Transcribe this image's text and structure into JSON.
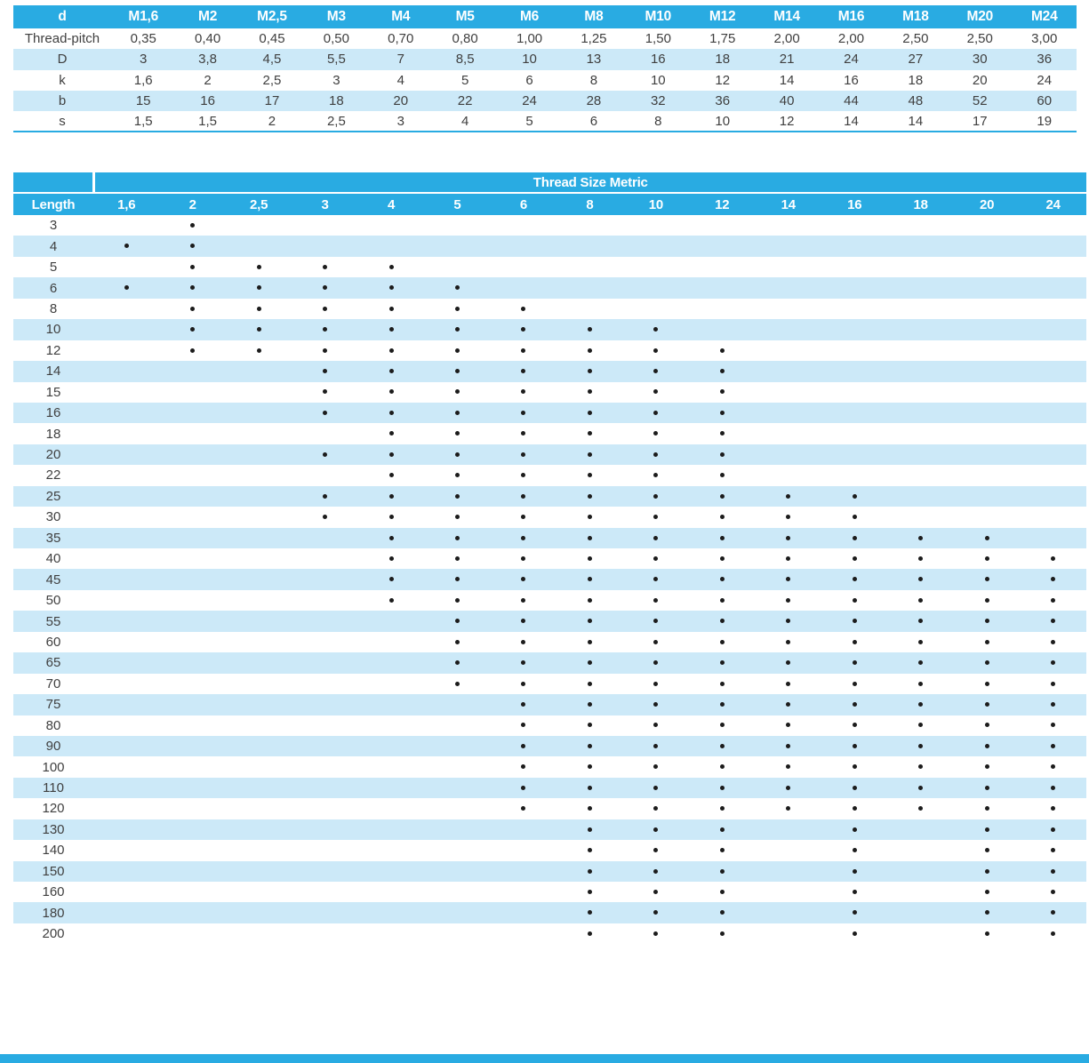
{
  "colors": {
    "header_blue": "#29abe2",
    "stripe_blue": "#cce9f8",
    "text": "#3f3f3f",
    "dot": "#1c1c1c",
    "header_text": "#ffffff"
  },
  "dimensions_table": {
    "columns": [
      "d",
      "M1,6",
      "M2",
      "M2,5",
      "M3",
      "M4",
      "M5",
      "M6",
      "M8",
      "M10",
      "M12",
      "M14",
      "M16",
      "M18",
      "M20",
      "M24"
    ],
    "rows": [
      {
        "label": "Thread-pitch",
        "values": [
          "0,35",
          "0,40",
          "0,45",
          "0,50",
          "0,70",
          "0,80",
          "1,00",
          "1,25",
          "1,50",
          "1,75",
          "2,00",
          "2,00",
          "2,50",
          "2,50",
          "3,00"
        ]
      },
      {
        "label": "D",
        "values": [
          "3",
          "3,8",
          "4,5",
          "5,5",
          "7",
          "8,5",
          "10",
          "13",
          "16",
          "18",
          "21",
          "24",
          "27",
          "30",
          "36"
        ]
      },
      {
        "label": "k",
        "values": [
          "1,6",
          "2",
          "2,5",
          "3",
          "4",
          "5",
          "6",
          "8",
          "10",
          "12",
          "14",
          "16",
          "18",
          "20",
          "24"
        ]
      },
      {
        "label": "b",
        "values": [
          "15",
          "16",
          "17",
          "18",
          "20",
          "22",
          "24",
          "28",
          "32",
          "36",
          "40",
          "44",
          "48",
          "52",
          "60"
        ]
      },
      {
        "label": "s",
        "values": [
          "1,5",
          "1,5",
          "2",
          "2,5",
          "3",
          "4",
          "5",
          "6",
          "8",
          "10",
          "12",
          "14",
          "14",
          "17",
          "19"
        ]
      }
    ]
  },
  "availability_table": {
    "title": "Thread Size Metric",
    "length_label": "Length",
    "sizes": [
      "1,6",
      "2",
      "2,5",
      "3",
      "4",
      "5",
      "6",
      "8",
      "10",
      "12",
      "14",
      "16",
      "18",
      "20",
      "24"
    ],
    "rows": [
      {
        "length": "3",
        "available": [
          "2"
        ]
      },
      {
        "length": "4",
        "available": [
          "1,6",
          "2"
        ]
      },
      {
        "length": "5",
        "available": [
          "2",
          "2,5",
          "3",
          "4"
        ]
      },
      {
        "length": "6",
        "available": [
          "1,6",
          "2",
          "2,5",
          "3",
          "4",
          "5"
        ]
      },
      {
        "length": "8",
        "available": [
          "2",
          "2,5",
          "3",
          "4",
          "5",
          "6"
        ]
      },
      {
        "length": "10",
        "available": [
          "2",
          "2,5",
          "3",
          "4",
          "5",
          "6",
          "8",
          "10"
        ]
      },
      {
        "length": "12",
        "available": [
          "2",
          "2,5",
          "3",
          "4",
          "5",
          "6",
          "8",
          "10",
          "12"
        ]
      },
      {
        "length": "14",
        "available": [
          "3",
          "4",
          "5",
          "6",
          "8",
          "10",
          "12"
        ]
      },
      {
        "length": "15",
        "available": [
          "3",
          "4",
          "5",
          "6",
          "8",
          "10",
          "12"
        ]
      },
      {
        "length": "16",
        "available": [
          "3",
          "4",
          "5",
          "6",
          "8",
          "10",
          "12"
        ]
      },
      {
        "length": "18",
        "available": [
          "4",
          "5",
          "6",
          "8",
          "10",
          "12"
        ]
      },
      {
        "length": "20",
        "available": [
          "3",
          "4",
          "5",
          "6",
          "8",
          "10",
          "12"
        ]
      },
      {
        "length": "22",
        "available": [
          "4",
          "5",
          "6",
          "8",
          "10",
          "12"
        ]
      },
      {
        "length": "25",
        "available": [
          "3",
          "4",
          "5",
          "6",
          "8",
          "10",
          "12",
          "14",
          "16"
        ]
      },
      {
        "length": "30",
        "available": [
          "3",
          "4",
          "5",
          "6",
          "8",
          "10",
          "12",
          "14",
          "16"
        ]
      },
      {
        "length": "35",
        "available": [
          "4",
          "5",
          "6",
          "8",
          "10",
          "12",
          "14",
          "16",
          "18",
          "20"
        ]
      },
      {
        "length": "40",
        "available": [
          "4",
          "5",
          "6",
          "8",
          "10",
          "12",
          "14",
          "16",
          "18",
          "20",
          "24"
        ]
      },
      {
        "length": "45",
        "available": [
          "4",
          "5",
          "6",
          "8",
          "10",
          "12",
          "14",
          "16",
          "18",
          "20",
          "24"
        ]
      },
      {
        "length": "50",
        "available": [
          "4",
          "5",
          "6",
          "8",
          "10",
          "12",
          "14",
          "16",
          "18",
          "20",
          "24"
        ]
      },
      {
        "length": "55",
        "available": [
          "5",
          "6",
          "8",
          "10",
          "12",
          "14",
          "16",
          "18",
          "20",
          "24"
        ]
      },
      {
        "length": "60",
        "available": [
          "5",
          "6",
          "8",
          "10",
          "12",
          "14",
          "16",
          "18",
          "20",
          "24"
        ]
      },
      {
        "length": "65",
        "available": [
          "5",
          "6",
          "8",
          "10",
          "12",
          "14",
          "16",
          "18",
          "20",
          "24"
        ]
      },
      {
        "length": "70",
        "available": [
          "5",
          "6",
          "8",
          "10",
          "12",
          "14",
          "16",
          "18",
          "20",
          "24"
        ]
      },
      {
        "length": "75",
        "available": [
          "6",
          "8",
          "10",
          "12",
          "14",
          "16",
          "18",
          "20",
          "24"
        ]
      },
      {
        "length": "80",
        "available": [
          "6",
          "8",
          "10",
          "12",
          "14",
          "16",
          "18",
          "20",
          "24"
        ]
      },
      {
        "length": "90",
        "available": [
          "6",
          "8",
          "10",
          "12",
          "14",
          "16",
          "18",
          "20",
          "24"
        ]
      },
      {
        "length": "100",
        "available": [
          "6",
          "8",
          "10",
          "12",
          "14",
          "16",
          "18",
          "20",
          "24"
        ]
      },
      {
        "length": "110",
        "available": [
          "6",
          "8",
          "10",
          "12",
          "14",
          "16",
          "18",
          "20",
          "24"
        ]
      },
      {
        "length": "120",
        "available": [
          "6",
          "8",
          "10",
          "12",
          "14",
          "16",
          "18",
          "20",
          "24"
        ]
      },
      {
        "length": "130",
        "available": [
          "8",
          "10",
          "12",
          "16",
          "20",
          "24"
        ]
      },
      {
        "length": "140",
        "available": [
          "8",
          "10",
          "12",
          "16",
          "20",
          "24"
        ]
      },
      {
        "length": "150",
        "available": [
          "8",
          "10",
          "12",
          "16",
          "20",
          "24"
        ]
      },
      {
        "length": "160",
        "available": [
          "8",
          "10",
          "12",
          "16",
          "20",
          "24"
        ]
      },
      {
        "length": "180",
        "available": [
          "8",
          "10",
          "12",
          "16",
          "20",
          "24"
        ]
      },
      {
        "length": "200",
        "available": [
          "8",
          "10",
          "12",
          "16",
          "20",
          "24"
        ]
      }
    ]
  }
}
